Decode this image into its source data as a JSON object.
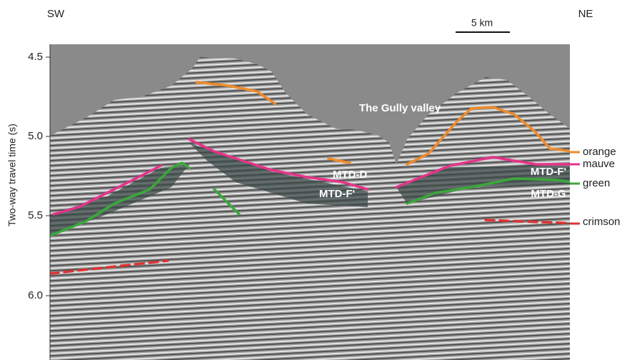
{
  "header": {
    "left": "SW",
    "right": "NE",
    "scale": "5 km"
  },
  "axis": {
    "label": "Two-way travel time (s)",
    "ticks": [
      "4.5",
      "5.0",
      "5.5",
      "6.0"
    ]
  },
  "annotations": [
    "The Gully valley",
    "MTD-D",
    "MTD-F'",
    "MTD-F'",
    "MTD-G"
  ],
  "horizons": [
    "orange",
    "mauve",
    "green",
    "crimson"
  ]
}
